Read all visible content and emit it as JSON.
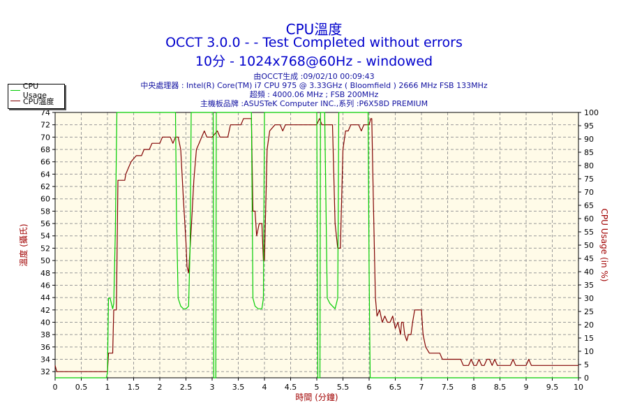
{
  "header": {
    "title": "CPU溫度",
    "subtitle_line1": "OCCT 3.0.0 -  - Test Completed without errors",
    "subtitle_line2": "10分 - 1024x768@60Hz - windowed",
    "info": [
      "由OCCT生成 :09/02/10 00:09:43",
      "中央處理器 : Intel(R) Core(TM) i7 CPU 975 @ 3.33GHz ( Bloomfield ) 2666 MHz FSB 133MHz",
      "超頻 : 4000.06 MHz ; FSB 200MHz",
      "主機板品牌 :ASUSTeK Computer INC.,系列 :P6X58D PREMIUM"
    ]
  },
  "legend": [
    {
      "name": "CPU Usage",
      "color": "#00cc00"
    },
    {
      "name": "CPU溫度",
      "color": "#800000"
    }
  ],
  "chart_data": {
    "type": "line",
    "xlabel": "時間 (分鐘)",
    "ylabel_left": "溫度 (攝氏)",
    "ylabel_right": "CPU Usage (in %)",
    "xlim": [
      0,
      10
    ],
    "ylim_left": [
      31,
      74
    ],
    "ylim_right": [
      0,
      100
    ],
    "x_ticks": [
      "0",
      "0.5",
      "1",
      "1.5",
      "2",
      "2.5",
      "3",
      "3.5",
      "4",
      "4.5",
      "5",
      "5.5",
      "6",
      "6.5",
      "7",
      "7.5",
      "8",
      "8.5",
      "9",
      "9.5",
      "10"
    ],
    "y_ticks_left": [
      "32",
      "34",
      "36",
      "38",
      "40",
      "42",
      "44",
      "46",
      "48",
      "50",
      "52",
      "54",
      "56",
      "58",
      "60",
      "62",
      "64",
      "66",
      "68",
      "70",
      "72",
      "74"
    ],
    "y_ticks_right": [
      "0",
      "5",
      "10",
      "15",
      "20",
      "25",
      "30",
      "35",
      "40",
      "45",
      "50",
      "55",
      "60",
      "65",
      "70",
      "75",
      "80",
      "85",
      "90",
      "95",
      "100"
    ],
    "grid": true,
    "legend_position": "top-left",
    "series": [
      {
        "name": "CPU溫度",
        "axis": "left",
        "color": "#800000",
        "points": [
          [
            0,
            33
          ],
          [
            0.03,
            32
          ],
          [
            1,
            32
          ],
          [
            1.02,
            35
          ],
          [
            1.1,
            35
          ],
          [
            1.12,
            42
          ],
          [
            1.17,
            42
          ],
          [
            1.2,
            63
          ],
          [
            1.33,
            63
          ],
          [
            1.35,
            64
          ],
          [
            1.4,
            65
          ],
          [
            1.45,
            66
          ],
          [
            1.55,
            67
          ],
          [
            1.65,
            67
          ],
          [
            1.7,
            68
          ],
          [
            1.8,
            68
          ],
          [
            1.85,
            69
          ],
          [
            2.0,
            69
          ],
          [
            2.05,
            70
          ],
          [
            2.2,
            70
          ],
          [
            2.25,
            69
          ],
          [
            2.3,
            70
          ],
          [
            2.35,
            70
          ],
          [
            2.4,
            68
          ],
          [
            2.45,
            60
          ],
          [
            2.5,
            53
          ],
          [
            2.52,
            49
          ],
          [
            2.55,
            48
          ],
          [
            2.6,
            55
          ],
          [
            2.65,
            63
          ],
          [
            2.7,
            68
          ],
          [
            2.75,
            69
          ],
          [
            2.8,
            70
          ],
          [
            2.85,
            71
          ],
          [
            2.9,
            70
          ],
          [
            3.0,
            70
          ],
          [
            3.1,
            71
          ],
          [
            3.15,
            70
          ],
          [
            3.3,
            70
          ],
          [
            3.35,
            72
          ],
          [
            3.45,
            72
          ],
          [
            3.5,
            72
          ],
          [
            3.55,
            72
          ],
          [
            3.6,
            73
          ],
          [
            3.75,
            73
          ],
          [
            3.78,
            58
          ],
          [
            3.82,
            58
          ],
          [
            3.85,
            54
          ],
          [
            3.9,
            56
          ],
          [
            3.95,
            56
          ],
          [
            3.98,
            50
          ],
          [
            4.0,
            50
          ],
          [
            4.05,
            68
          ],
          [
            4.1,
            71
          ],
          [
            4.2,
            72
          ],
          [
            4.3,
            72
          ],
          [
            4.35,
            71
          ],
          [
            4.4,
            72
          ],
          [
            4.95,
            72
          ],
          [
            5.0,
            72
          ],
          [
            5.05,
            73
          ],
          [
            5.1,
            72
          ],
          [
            5.3,
            72
          ],
          [
            5.35,
            56
          ],
          [
            5.4,
            52
          ],
          [
            5.45,
            52
          ],
          [
            5.5,
            68
          ],
          [
            5.55,
            71
          ],
          [
            5.6,
            71
          ],
          [
            5.65,
            72
          ],
          [
            5.8,
            72
          ],
          [
            5.85,
            71
          ],
          [
            5.9,
            72
          ],
          [
            6.0,
            72
          ],
          [
            6.03,
            73
          ],
          [
            6.05,
            73
          ],
          [
            6.08,
            60
          ],
          [
            6.12,
            44
          ],
          [
            6.15,
            41
          ],
          [
            6.2,
            42
          ],
          [
            6.25,
            40
          ],
          [
            6.3,
            41
          ],
          [
            6.35,
            40
          ],
          [
            6.4,
            40
          ],
          [
            6.45,
            41
          ],
          [
            6.5,
            39
          ],
          [
            6.55,
            40
          ],
          [
            6.6,
            38
          ],
          [
            6.62,
            40
          ],
          [
            6.65,
            40
          ],
          [
            6.68,
            38
          ],
          [
            6.72,
            37
          ],
          [
            6.75,
            38
          ],
          [
            6.8,
            38
          ],
          [
            6.83,
            40
          ],
          [
            6.87,
            42
          ],
          [
            7.0,
            42
          ],
          [
            7.03,
            38
          ],
          [
            7.08,
            36
          ],
          [
            7.15,
            35
          ],
          [
            7.25,
            35
          ],
          [
            7.35,
            35
          ],
          [
            7.4,
            34
          ],
          [
            7.5,
            34
          ],
          [
            7.6,
            34
          ],
          [
            7.7,
            34
          ],
          [
            7.75,
            34
          ],
          [
            7.8,
            33
          ],
          [
            7.9,
            33
          ],
          [
            7.95,
            34
          ],
          [
            8.0,
            33
          ],
          [
            8.05,
            33
          ],
          [
            8.1,
            34
          ],
          [
            8.15,
            33
          ],
          [
            8.2,
            33
          ],
          [
            8.25,
            34
          ],
          [
            8.3,
            34
          ],
          [
            8.35,
            33
          ],
          [
            8.4,
            34
          ],
          [
            8.45,
            33
          ],
          [
            8.5,
            33
          ],
          [
            8.6,
            33
          ],
          [
            8.7,
            33
          ],
          [
            8.75,
            34
          ],
          [
            8.8,
            33
          ],
          [
            9.0,
            33
          ],
          [
            9.05,
            34
          ],
          [
            9.1,
            33
          ],
          [
            10,
            33
          ]
        ]
      },
      {
        "name": "CPU Usage",
        "axis": "right",
        "color": "#00cc00",
        "points": [
          [
            0,
            0
          ],
          [
            0.98,
            0
          ],
          [
            1.0,
            2
          ],
          [
            1.02,
            30
          ],
          [
            1.05,
            30
          ],
          [
            1.1,
            26
          ],
          [
            1.12,
            28
          ],
          [
            1.15,
            55
          ],
          [
            1.18,
            100
          ],
          [
            2.3,
            100
          ],
          [
            2.32,
            60
          ],
          [
            2.35,
            30
          ],
          [
            2.4,
            27
          ],
          [
            2.45,
            26
          ],
          [
            2.5,
            26
          ],
          [
            2.55,
            27
          ],
          [
            2.58,
            50
          ],
          [
            2.6,
            100
          ],
          [
            3.02,
            100
          ],
          [
            3.03,
            0
          ],
          [
            3.07,
            0
          ],
          [
            3.08,
            100
          ],
          [
            3.75,
            100
          ],
          [
            3.78,
            30
          ],
          [
            3.82,
            27
          ],
          [
            3.88,
            26
          ],
          [
            3.95,
            26
          ],
          [
            3.98,
            30
          ],
          [
            4.0,
            100
          ],
          [
            5.0,
            100
          ],
          [
            5.02,
            0
          ],
          [
            5.06,
            0
          ],
          [
            5.07,
            100
          ],
          [
            5.15,
            100
          ],
          [
            5.2,
            30
          ],
          [
            5.25,
            28
          ],
          [
            5.3,
            27
          ],
          [
            5.35,
            26
          ],
          [
            5.4,
            30
          ],
          [
            5.42,
            100
          ],
          [
            5.98,
            100
          ],
          [
            6.0,
            40
          ],
          [
            6.02,
            0
          ],
          [
            10,
            0
          ]
        ]
      }
    ]
  }
}
